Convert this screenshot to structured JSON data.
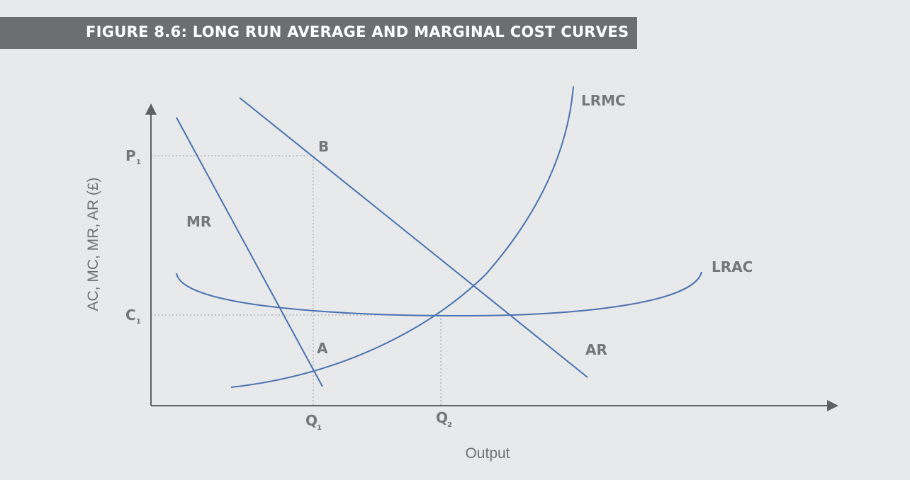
{
  "figure": {
    "title": "FIGURE 8.6: LONG RUN AVERAGE AND MARGINAL COST CURVES"
  },
  "axes": {
    "y_label": "AC, MC, MR, AR (£)",
    "x_label": "Output"
  },
  "curves": {
    "lrmc": "LRMC",
    "lrac": "LRAC",
    "mr": "MR",
    "ar": "AR"
  },
  "points": {
    "a": "A",
    "b": "B"
  },
  "ticks": {
    "p1": {
      "main": "P",
      "sub": "1"
    },
    "c1": {
      "main": "C",
      "sub": "1"
    },
    "q1": {
      "main": "Q",
      "sub": "1"
    },
    "q2": {
      "main": "Q",
      "sub": "2"
    }
  },
  "colors": {
    "curve": "#4a72b0",
    "axis": "#5e6063",
    "guide": "#b4b6b9",
    "banner": "#6c6e70",
    "background": "#e8e9eb"
  }
}
